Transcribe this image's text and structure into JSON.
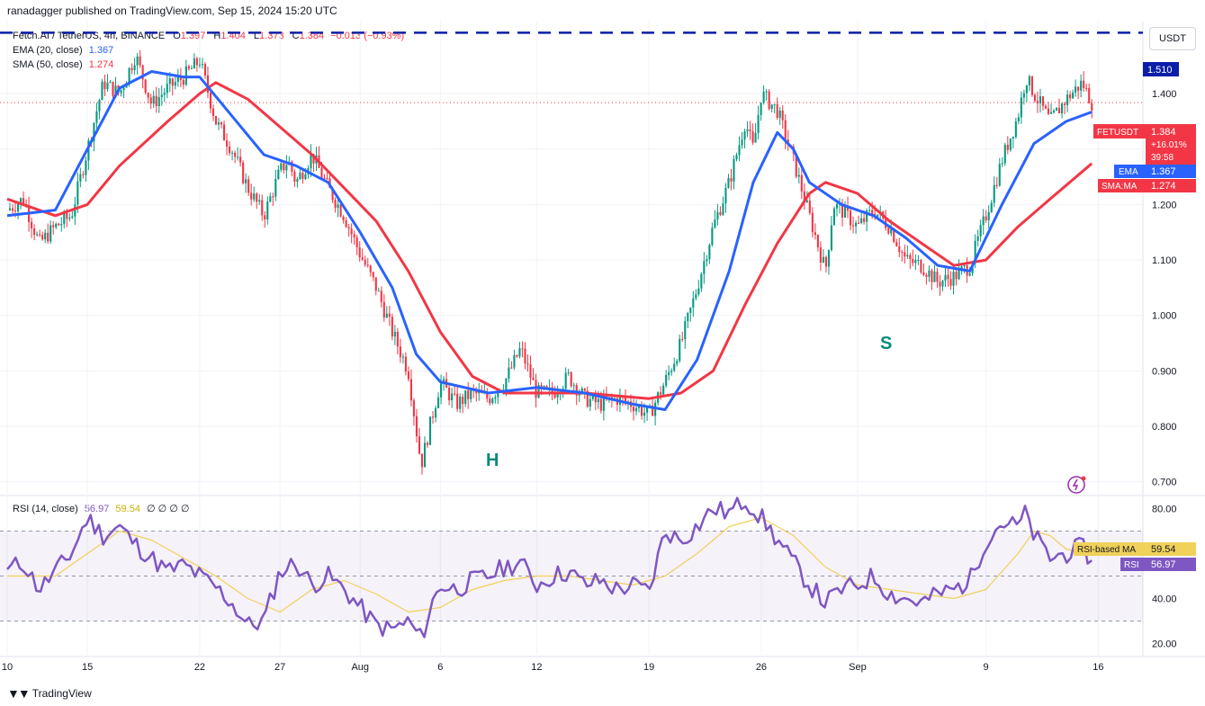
{
  "publisher": "ranadagger published on TradingView.com, Sep 15, 2024 15:20 UTC",
  "footer_brand": "TradingView",
  "currency": "USDT",
  "legend": {
    "symbol": "Fetch.AI / TetherUS, 4h, BINANCE",
    "o_label": "O",
    "o": "1.397",
    "h_label": "H",
    "h": "1.404",
    "l_label": "L",
    "l": "1.373",
    "c_label": "C",
    "c": "1.384",
    "change": "−0.013 (−0.93%)",
    "ema_label": "EMA (20, close)",
    "ema_value": "1.367",
    "sma_label": "SMA (50, close)",
    "sma_value": "1.274",
    "rsi_label": "RSI (14, close)",
    "rsi_value": "56.97",
    "rsi_ma_value": "59.54",
    "rsi_extra": "∅ ∅ ∅ ∅"
  },
  "colors": {
    "up": "#089981",
    "down": "#f23645",
    "ema": "#2962ff",
    "sma": "#f23645",
    "rsi": "#7e57c2",
    "rsi_ma": "#f0d15a",
    "level": "#0b1ea8",
    "pattern": "#0a8a7a"
  },
  "price_axis": {
    "ticks": [
      "1.400",
      "1.300",
      "1.200",
      "1.100",
      "1.000",
      "0.900",
      "0.800",
      "0.700"
    ],
    "tick_values": [
      1.4,
      1.3,
      1.2,
      1.1,
      1.0,
      0.9,
      0.8,
      0.7
    ],
    "level_label": "1.510",
    "symbol_tag": "FETUSDT",
    "last_price": "1.384",
    "last_change": "+16.01%",
    "countdown": "39:58",
    "ema_tag": "EMA",
    "ema_tag_value": "1.367",
    "sma_tag": "SMA:MA",
    "sma_tag_value": "1.274"
  },
  "rsi_axis": {
    "ticks": [
      "80.00",
      "40.00",
      "20.00"
    ],
    "tick_values": [
      80,
      40,
      20
    ],
    "ma_tag": "RSI-based MA",
    "ma_tag_value": "59.54",
    "rsi_tag": "RSI",
    "rsi_tag_value": "56.97"
  },
  "x_axis": {
    "labels": [
      "10",
      "15",
      "22",
      "27",
      "Aug",
      "6",
      "12",
      "19",
      "26",
      "Sep",
      "9",
      "16"
    ],
    "label_days": [
      0,
      5,
      12,
      17,
      22,
      27,
      33,
      40,
      47,
      53,
      61,
      68
    ]
  },
  "annotations": {
    "head_left": "H",
    "head_right": "S"
  },
  "chart_data": {
    "type": "candlestick",
    "timeframe": "4h",
    "x_start": "2024-07-10",
    "x_end": "2024-09-16",
    "resistance_level": 1.51,
    "price_ylim": [
      0.68,
      1.53
    ],
    "rsi_ylim": [
      15,
      85
    ],
    "rsi_bands": [
      30,
      70,
      50
    ],
    "price_path": [
      [
        0,
        1.19
      ],
      [
        1,
        1.21
      ],
      [
        1.5,
        1.17
      ],
      [
        2,
        1.13
      ],
      [
        3,
        1.16
      ],
      [
        4,
        1.18
      ],
      [
        5,
        1.3
      ],
      [
        6,
        1.42
      ],
      [
        7,
        1.4
      ],
      [
        8,
        1.47
      ],
      [
        9,
        1.38
      ],
      [
        10,
        1.41
      ],
      [
        11,
        1.43
      ],
      [
        12,
        1.46
      ],
      [
        13,
        1.35
      ],
      [
        14,
        1.3
      ],
      [
        15,
        1.23
      ],
      [
        16,
        1.18
      ],
      [
        17,
        1.26
      ],
      [
        17.5,
        1.28
      ],
      [
        18,
        1.24
      ],
      [
        19,
        1.29
      ],
      [
        20,
        1.23
      ],
      [
        21,
        1.18
      ],
      [
        22,
        1.11
      ],
      [
        23,
        1.05
      ],
      [
        24,
        0.97
      ],
      [
        25,
        0.9
      ],
      [
        25.8,
        0.73
      ],
      [
        26.5,
        0.82
      ],
      [
        27,
        0.88
      ],
      [
        28,
        0.84
      ],
      [
        29,
        0.86
      ],
      [
        30,
        0.85
      ],
      [
        31,
        0.88
      ],
      [
        32,
        0.94
      ],
      [
        33,
        0.86
      ],
      [
        34,
        0.86
      ],
      [
        35,
        0.89
      ],
      [
        36,
        0.85
      ],
      [
        37,
        0.84
      ],
      [
        38,
        0.85
      ],
      [
        39,
        0.84
      ],
      [
        40,
        0.82
      ],
      [
        41,
        0.88
      ],
      [
        42,
        0.95
      ],
      [
        43,
        1.05
      ],
      [
        44,
        1.16
      ],
      [
        45,
        1.24
      ],
      [
        46,
        1.35
      ],
      [
        46.5,
        1.3
      ],
      [
        47,
        1.4
      ],
      [
        48,
        1.37
      ],
      [
        49,
        1.28
      ],
      [
        50,
        1.18
      ],
      [
        51,
        1.08
      ],
      [
        51.5,
        1.2
      ],
      [
        52,
        1.19
      ],
      [
        53,
        1.16
      ],
      [
        54,
        1.19
      ],
      [
        55,
        1.16
      ],
      [
        56,
        1.1
      ],
      [
        57,
        1.09
      ],
      [
        58,
        1.06
      ],
      [
        59,
        1.07
      ],
      [
        60,
        1.09
      ],
      [
        61,
        1.18
      ],
      [
        62,
        1.28
      ],
      [
        63,
        1.36
      ],
      [
        63.5,
        1.43
      ],
      [
        64,
        1.4
      ],
      [
        65,
        1.35
      ],
      [
        66,
        1.39
      ],
      [
        67,
        1.42
      ],
      [
        67.6,
        1.384
      ]
    ],
    "ema20": [
      [
        0,
        1.18
      ],
      [
        3,
        1.19
      ],
      [
        5,
        1.3
      ],
      [
        7,
        1.41
      ],
      [
        9,
        1.44
      ],
      [
        11,
        1.43
      ],
      [
        12,
        1.43
      ],
      [
        14,
        1.36
      ],
      [
        16,
        1.29
      ],
      [
        18,
        1.27
      ],
      [
        20,
        1.24
      ],
      [
        22,
        1.15
      ],
      [
        24,
        1.05
      ],
      [
        25.5,
        0.93
      ],
      [
        27,
        0.88
      ],
      [
        30,
        0.86
      ],
      [
        33,
        0.87
      ],
      [
        36,
        0.86
      ],
      [
        39,
        0.84
      ],
      [
        41,
        0.83
      ],
      [
        43,
        0.92
      ],
      [
        45,
        1.08
      ],
      [
        46.5,
        1.24
      ],
      [
        48,
        1.33
      ],
      [
        49,
        1.3
      ],
      [
        50,
        1.24
      ],
      [
        52,
        1.2
      ],
      [
        54,
        1.18
      ],
      [
        56,
        1.14
      ],
      [
        58,
        1.09
      ],
      [
        60,
        1.08
      ],
      [
        62,
        1.2
      ],
      [
        64,
        1.31
      ],
      [
        66,
        1.35
      ],
      [
        67.6,
        1.367
      ]
    ],
    "sma50": [
      [
        0,
        1.21
      ],
      [
        3,
        1.18
      ],
      [
        5,
        1.2
      ],
      [
        7,
        1.27
      ],
      [
        10,
        1.35
      ],
      [
        12,
        1.4
      ],
      [
        13,
        1.42
      ],
      [
        15,
        1.39
      ],
      [
        17,
        1.34
      ],
      [
        19,
        1.29
      ],
      [
        21,
        1.23
      ],
      [
        23,
        1.17
      ],
      [
        25,
        1.08
      ],
      [
        27,
        0.97
      ],
      [
        29,
        0.89
      ],
      [
        31,
        0.86
      ],
      [
        33,
        0.86
      ],
      [
        36,
        0.86
      ],
      [
        40,
        0.85
      ],
      [
        42,
        0.86
      ],
      [
        44,
        0.9
      ],
      [
        46,
        1.02
      ],
      [
        48,
        1.13
      ],
      [
        50,
        1.22
      ],
      [
        51,
        1.24
      ],
      [
        53,
        1.22
      ],
      [
        55,
        1.17
      ],
      [
        57,
        1.13
      ],
      [
        59,
        1.09
      ],
      [
        61,
        1.1
      ],
      [
        63,
        1.16
      ],
      [
        65,
        1.21
      ],
      [
        67.6,
        1.274
      ]
    ],
    "rsi": [
      [
        0,
        53
      ],
      [
        1,
        56
      ],
      [
        2,
        44
      ],
      [
        3,
        52
      ],
      [
        4,
        60
      ],
      [
        5,
        76
      ],
      [
        6,
        68
      ],
      [
        7,
        72
      ],
      [
        8,
        64
      ],
      [
        9,
        58
      ],
      [
        10,
        52
      ],
      [
        11,
        55
      ],
      [
        12,
        50
      ],
      [
        13,
        45
      ],
      [
        14,
        38
      ],
      [
        15,
        28
      ],
      [
        16,
        30
      ],
      [
        17,
        52
      ],
      [
        18,
        56
      ],
      [
        19,
        46
      ],
      [
        20,
        50
      ],
      [
        21,
        44
      ],
      [
        22,
        36
      ],
      [
        23,
        28
      ],
      [
        24,
        26
      ],
      [
        25,
        30
      ],
      [
        25.8,
        22
      ],
      [
        26.5,
        38
      ],
      [
        27,
        46
      ],
      [
        28,
        44
      ],
      [
        29,
        48
      ],
      [
        30,
        50
      ],
      [
        31,
        54
      ],
      [
        32,
        56
      ],
      [
        33,
        46
      ],
      [
        34,
        50
      ],
      [
        35,
        52
      ],
      [
        36,
        46
      ],
      [
        37,
        48
      ],
      [
        38,
        44
      ],
      [
        39,
        46
      ],
      [
        40,
        43
      ],
      [
        41,
        70
      ],
      [
        42,
        66
      ],
      [
        43,
        72
      ],
      [
        44,
        80
      ],
      [
        45,
        78
      ],
      [
        46,
        84
      ],
      [
        47,
        76
      ],
      [
        48,
        66
      ],
      [
        49,
        56
      ],
      [
        50,
        46
      ],
      [
        51,
        38
      ],
      [
        52,
        44
      ],
      [
        53,
        46
      ],
      [
        54,
        50
      ],
      [
        55,
        42
      ],
      [
        56,
        40
      ],
      [
        57,
        38
      ],
      [
        58,
        42
      ],
      [
        59,
        44
      ],
      [
        60,
        48
      ],
      [
        61,
        66
      ],
      [
        62,
        74
      ],
      [
        63,
        72
      ],
      [
        63.5,
        78
      ],
      [
        64,
        68
      ],
      [
        65,
        58
      ],
      [
        66,
        60
      ],
      [
        67,
        63
      ],
      [
        67.6,
        56.97
      ]
    ],
    "rsi_ma": [
      [
        0,
        50
      ],
      [
        3,
        50
      ],
      [
        5,
        60
      ],
      [
        7,
        70
      ],
      [
        9,
        66
      ],
      [
        11,
        58
      ],
      [
        13,
        50
      ],
      [
        15,
        40
      ],
      [
        17,
        34
      ],
      [
        19,
        44
      ],
      [
        21,
        48
      ],
      [
        23,
        42
      ],
      [
        25,
        34
      ],
      [
        27,
        36
      ],
      [
        29,
        44
      ],
      [
        31,
        48
      ],
      [
        33,
        50
      ],
      [
        35,
        50
      ],
      [
        37,
        48
      ],
      [
        39,
        46
      ],
      [
        41,
        50
      ],
      [
        43,
        60
      ],
      [
        45,
        72
      ],
      [
        47,
        76
      ],
      [
        49,
        68
      ],
      [
        51,
        54
      ],
      [
        53,
        46
      ],
      [
        55,
        44
      ],
      [
        57,
        42
      ],
      [
        59,
        40
      ],
      [
        61,
        44
      ],
      [
        63,
        60
      ],
      [
        64,
        70
      ],
      [
        65,
        68
      ],
      [
        66,
        62
      ],
      [
        67.6,
        59.54
      ]
    ]
  }
}
